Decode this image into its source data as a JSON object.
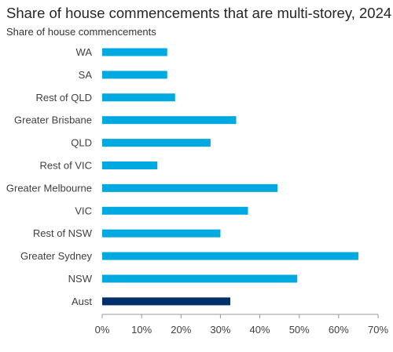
{
  "chart_data": {
    "type": "bar",
    "orientation": "horizontal",
    "title": "Share of house commencements that are multi-storey, 2024",
    "ylabel": "Share of house commencements",
    "xlabel": "",
    "categories": [
      "WA",
      "SA",
      "Rest of QLD",
      "Greater Brisbane",
      "QLD",
      "Rest of VIC",
      "Greater Melbourne",
      "VIC",
      "Rest of NSW",
      "Greater Sydney ",
      "NSW",
      "Aust"
    ],
    "values": [
      16.5,
      16.5,
      18.5,
      34,
      27.5,
      14,
      44.5,
      37,
      30,
      65,
      49.5,
      32.5
    ],
    "highlight_category": "Aust",
    "xlim": [
      0,
      70
    ],
    "xticks": [
      0,
      10,
      20,
      30,
      40,
      50,
      60,
      70
    ],
    "xtick_labels": [
      "0%",
      "10%",
      "20%",
      "30%",
      "40%",
      "50%",
      "60%",
      "70%"
    ],
    "grid": false,
    "colors": {
      "bar": "#00A9E0",
      "highlight": "#002F6C",
      "axis": "#999999"
    }
  }
}
